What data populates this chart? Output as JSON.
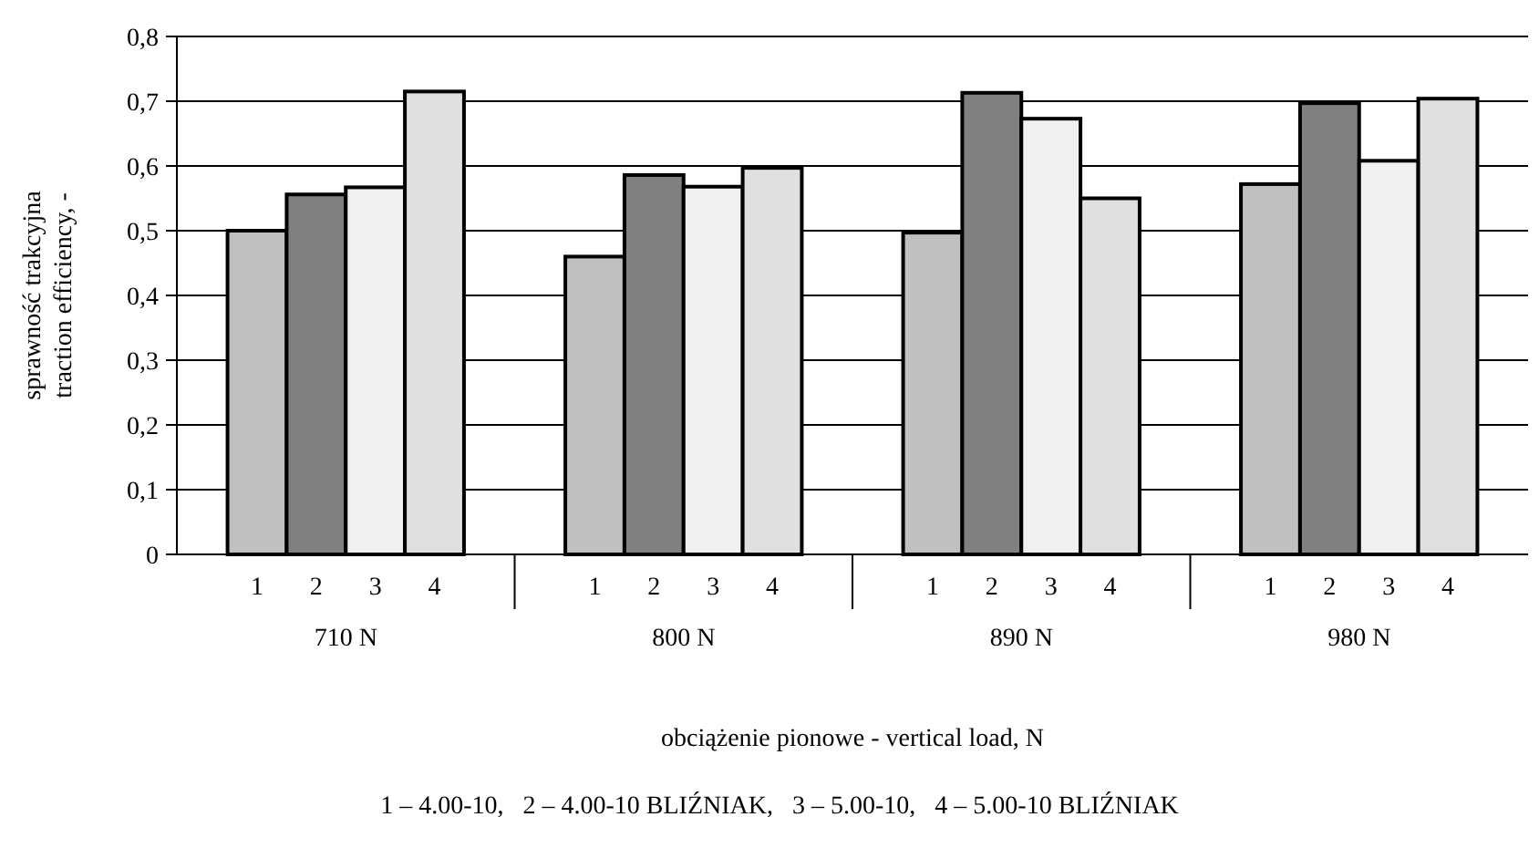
{
  "chart_data": {
    "type": "bar",
    "categories": [
      "710 N",
      "800 N",
      "890 N",
      "980 N"
    ],
    "series": [
      {
        "name": "1",
        "color": "#c0c0c0",
        "values": [
          0.5,
          0.46,
          0.497,
          0.572
        ]
      },
      {
        "name": "2",
        "color": "#808080",
        "values": [
          0.556,
          0.586,
          0.713,
          0.697
        ]
      },
      {
        "name": "3",
        "color": "#f0f0f0",
        "values": [
          0.567,
          0.568,
          0.673,
          0.608
        ]
      },
      {
        "name": "4",
        "color": "#e0e0e0",
        "values": [
          0.715,
          0.597,
          0.55,
          0.704
        ]
      }
    ],
    "xlabel": "obciążenie pionowe - vertical load, N",
    "ylabel": "sprawność trakcyjna\ntraction efficiency, -",
    "ylim": [
      0,
      0.8
    ],
    "yticks": [
      0,
      {
        "value": 0.1,
        "label": "0,1"
      },
      {
        "value": 0.2,
        "label": "0,2"
      },
      {
        "value": 0.3,
        "label": "0,3"
      },
      {
        "value": 0.4,
        "label": "0,4"
      },
      {
        "value": 0.5,
        "label": "0,5"
      },
      {
        "value": 0.6,
        "label": "0,6"
      },
      {
        "value": 0.7,
        "label": "0,7"
      },
      {
        "value": 0.8,
        "label": "0,8"
      }
    ],
    "grid": "y",
    "annotations": [
      "1 – 4.00-10,   2 – 4.00-10 BLIŹNIAK,   3 – 5.00-10,   4 – 5.00-10 BLIŹNIAK"
    ]
  }
}
